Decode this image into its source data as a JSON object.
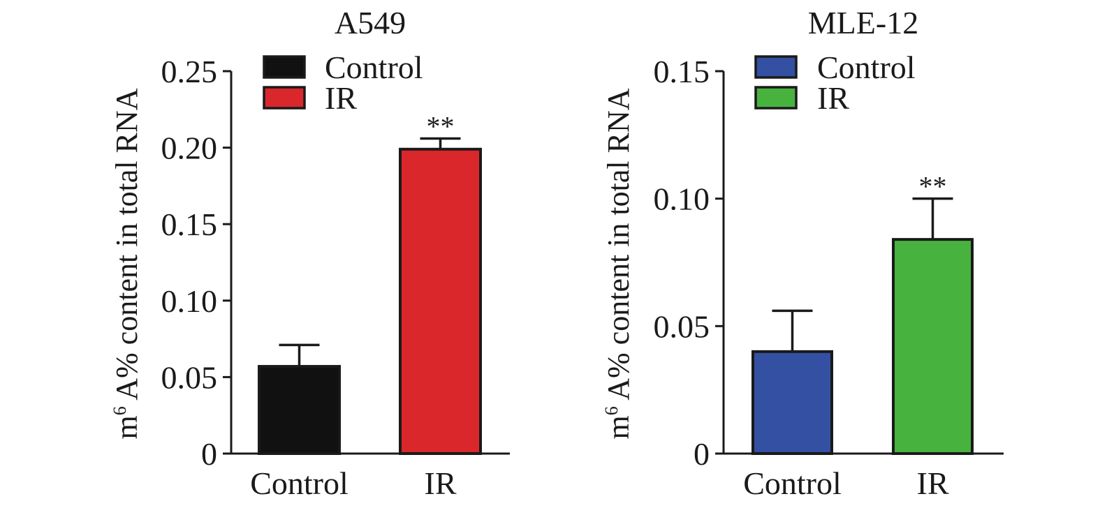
{
  "chart_data": [
    {
      "type": "bar",
      "title": "A549",
      "ylabel": {
        "prefix": "m",
        "sup": "6",
        "rest": " A% content in total RNA"
      },
      "xlabel": "",
      "categories": [
        "Control",
        "IR"
      ],
      "values": [
        0.057,
        0.199
      ],
      "errors": [
        0.014,
        0.007
      ],
      "colors": [
        "#111111",
        "#d9272b"
      ],
      "significance": [
        "",
        "**"
      ],
      "ylim": [
        0,
        0.25
      ],
      "yticks": [
        0,
        0.05,
        0.1,
        0.15,
        0.2,
        0.25
      ],
      "ytick_labels": [
        "0",
        "0.05",
        "0.10",
        "0.15",
        "0.20",
        "0.25"
      ],
      "legend": {
        "position": "top-left",
        "entries": [
          {
            "label": "Control",
            "color": "#111111"
          },
          {
            "label": "IR",
            "color": "#d9272b"
          }
        ]
      }
    },
    {
      "type": "bar",
      "title": "MLE-12",
      "ylabel": {
        "prefix": "m",
        "sup": "6",
        "rest": " A% content in total RNA"
      },
      "xlabel": "",
      "categories": [
        "Control",
        "IR"
      ],
      "values": [
        0.04,
        0.084
      ],
      "errors": [
        0.016,
        0.016
      ],
      "colors": [
        "#3350a3",
        "#48b23f"
      ],
      "significance": [
        "",
        "**"
      ],
      "ylim": [
        0,
        0.15
      ],
      "yticks": [
        0,
        0.05,
        0.1,
        0.15
      ],
      "ytick_labels": [
        "0",
        "0.05",
        "0.10",
        "0.15"
      ],
      "legend": {
        "position": "top-left",
        "entries": [
          {
            "label": "Control",
            "color": "#3350a3"
          },
          {
            "label": "IR",
            "color": "#48b23f"
          }
        ]
      }
    }
  ]
}
